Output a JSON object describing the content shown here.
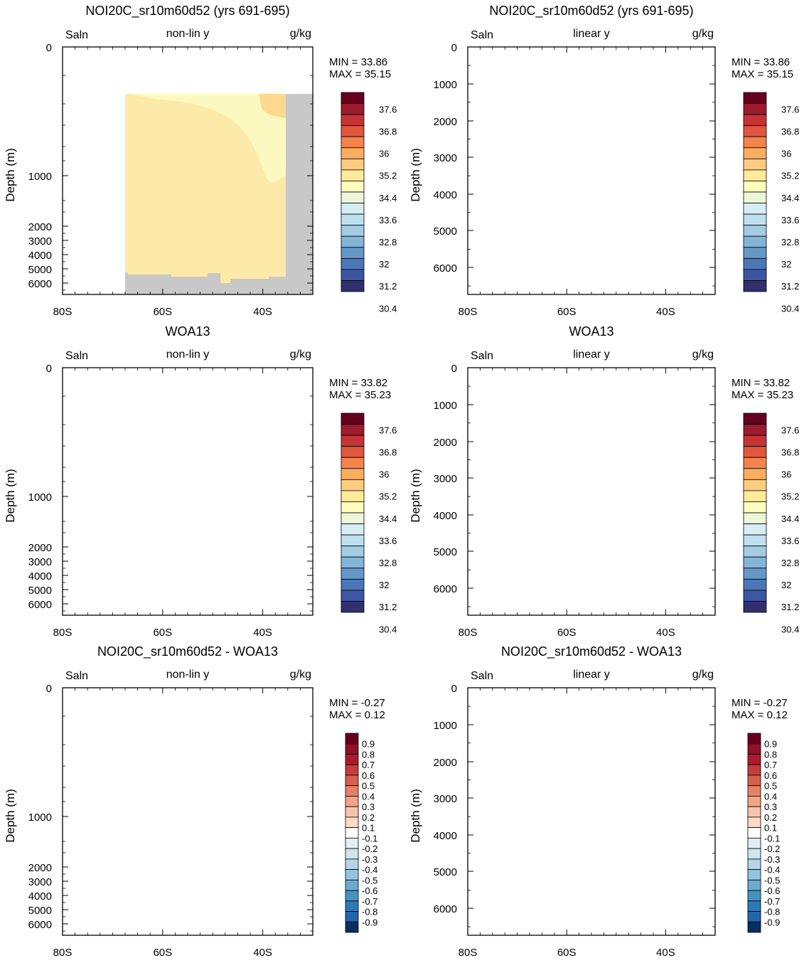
{
  "chart_data": [
    {
      "type": "contour",
      "title": "NOI20C_sr10m60d52 (yrs 691-695)",
      "left_label": "Saln",
      "center_label": "non-lin y",
      "right_label": "g/kg",
      "ylabel": "Depth (m)",
      "y_ticks": [
        "0",
        "1000",
        "2000",
        "3000",
        "4000",
        "5000",
        "6000"
      ],
      "x_ticks": [
        "80S",
        "60S",
        "40S"
      ],
      "min_label": "MIN =  33.86",
      "max_label": "MAX =  35.15",
      "colorbar": {
        "labels": [
          "37.6",
          "36.8",
          "36",
          "35.2",
          "34.4",
          "33.6",
          "32.8",
          "32",
          "31.2",
          "30.4"
        ],
        "colors": [
          "#67001f",
          "#9e1a2d",
          "#c73335",
          "#e0573e",
          "#f3844c",
          "#fbae60",
          "#fdcc81",
          "#feea99",
          "#fffcbe",
          "#edf6d7",
          "#d7edf4",
          "#bfe0ee",
          "#a3cce3",
          "#83b5d8",
          "#6597c9",
          "#4a77b6",
          "#3c56a2",
          "#322f6f"
        ]
      }
    },
    {
      "type": "contour",
      "title": "NOI20C_sr10m60d52 (yrs 691-695)",
      "left_label": "Saln",
      "center_label": "linear y",
      "right_label": "g/kg",
      "ylabel": "Depth (m)",
      "y_ticks": [
        "0",
        "1000",
        "2000",
        "3000",
        "4000",
        "5000",
        "6000"
      ],
      "x_ticks": [
        "80S",
        "60S",
        "40S"
      ],
      "min_label": "MIN =  33.86",
      "max_label": "MAX =  35.15",
      "colorbar": {
        "labels": [
          "37.6",
          "36.8",
          "36",
          "35.2",
          "34.4",
          "33.6",
          "32.8",
          "32",
          "31.2",
          "30.4"
        ],
        "colors": [
          "#67001f",
          "#9e1a2d",
          "#c73335",
          "#e0573e",
          "#f3844c",
          "#fbae60",
          "#fdcc81",
          "#feea99",
          "#fffcbe",
          "#edf6d7",
          "#d7edf4",
          "#bfe0ee",
          "#a3cce3",
          "#83b5d8",
          "#6597c9",
          "#4a77b6",
          "#3c56a2",
          "#322f6f"
        ]
      }
    },
    {
      "type": "contour",
      "title": "WOA13",
      "left_label": "Saln",
      "center_label": "non-lin y",
      "right_label": "g/kg",
      "ylabel": "Depth (m)",
      "y_ticks": [
        "0",
        "1000",
        "2000",
        "3000",
        "4000",
        "5000",
        "6000"
      ],
      "x_ticks": [
        "80S",
        "60S",
        "40S"
      ],
      "min_label": "MIN =  33.82",
      "max_label": "MAX =  35.23",
      "colorbar": {
        "labels": [
          "37.6",
          "36.8",
          "36",
          "35.2",
          "34.4",
          "33.6",
          "32.8",
          "32",
          "31.2",
          "30.4"
        ],
        "colors": [
          "#67001f",
          "#9e1a2d",
          "#c73335",
          "#e0573e",
          "#f3844c",
          "#fbae60",
          "#fdcc81",
          "#feea99",
          "#fffcbe",
          "#edf6d7",
          "#d7edf4",
          "#bfe0ee",
          "#a3cce3",
          "#83b5d8",
          "#6597c9",
          "#4a77b6",
          "#3c56a2",
          "#322f6f"
        ]
      }
    },
    {
      "type": "contour",
      "title": "WOA13",
      "left_label": "Saln",
      "center_label": "linear y",
      "right_label": "g/kg",
      "ylabel": "Depth (m)",
      "y_ticks": [
        "0",
        "1000",
        "2000",
        "3000",
        "4000",
        "5000",
        "6000"
      ],
      "x_ticks": [
        "80S",
        "60S",
        "40S"
      ],
      "min_label": "MIN =  33.82",
      "max_label": "MAX =  35.23",
      "colorbar": {
        "labels": [
          "37.6",
          "36.8",
          "36",
          "35.2",
          "34.4",
          "33.6",
          "32.8",
          "32",
          "31.2",
          "30.4"
        ],
        "colors": [
          "#67001f",
          "#9e1a2d",
          "#c73335",
          "#e0573e",
          "#f3844c",
          "#fbae60",
          "#fdcc81",
          "#feea99",
          "#fffcbe",
          "#edf6d7",
          "#d7edf4",
          "#bfe0ee",
          "#a3cce3",
          "#83b5d8",
          "#6597c9",
          "#4a77b6",
          "#3c56a2",
          "#322f6f"
        ]
      }
    },
    {
      "type": "contour",
      "title": "NOI20C_sr10m60d52 - WOA13",
      "left_label": "Saln",
      "center_label": "non-lin y",
      "right_label": "g/kg",
      "ylabel": "Depth (m)",
      "y_ticks": [
        "0",
        "1000",
        "2000",
        "3000",
        "4000",
        "5000",
        "6000"
      ],
      "x_ticks": [
        "80S",
        "60S",
        "40S"
      ],
      "min_label": "MIN =  -0.27",
      "max_label": "MAX =   0.12",
      "colorbar": {
        "labels": [
          "0.9",
          "0.8",
          "0.7",
          "0.6",
          "0.5",
          "0.4",
          "0.3",
          "0.2",
          "0.1",
          "-0.1",
          "-0.2",
          "-0.3",
          "-0.4",
          "-0.5",
          "-0.6",
          "-0.7",
          "-0.8",
          "-0.9"
        ],
        "colors": [
          "#67001f",
          "#930f26",
          "#b2182b",
          "#c43c3c",
          "#d6604d",
          "#e58267",
          "#f4a582",
          "#f8c4aa",
          "#fddbc7",
          "#ffffff",
          "#e1edf4",
          "#d1e5f0",
          "#b2d5e7",
          "#92c5de",
          "#6aabd1",
          "#4393c3",
          "#2f79b5",
          "#2166ac",
          "#053061"
        ]
      }
    },
    {
      "type": "contour",
      "title": "NOI20C_sr10m60d52 - WOA13",
      "left_label": "Saln",
      "center_label": "linear y",
      "right_label": "g/kg",
      "ylabel": "Depth (m)",
      "y_ticks": [
        "0",
        "1000",
        "2000",
        "3000",
        "4000",
        "5000",
        "6000"
      ],
      "x_ticks": [
        "80S",
        "60S",
        "40S"
      ],
      "min_label": "MIN =  -0.27",
      "max_label": "MAX =   0.12",
      "colorbar": {
        "labels": [
          "0.9",
          "0.8",
          "0.7",
          "0.6",
          "0.5",
          "0.4",
          "0.3",
          "0.2",
          "0.1",
          "-0.1",
          "-0.2",
          "-0.3",
          "-0.4",
          "-0.5",
          "-0.6",
          "-0.7",
          "-0.8",
          "-0.9"
        ],
        "colors": [
          "#67001f",
          "#930f26",
          "#b2182b",
          "#c43c3c",
          "#d6604d",
          "#e58267",
          "#f4a582",
          "#f8c4aa",
          "#fddbc7",
          "#ffffff",
          "#e1edf4",
          "#d1e5f0",
          "#b2d5e7",
          "#92c5de",
          "#6aabd1",
          "#4393c3",
          "#2f79b5",
          "#2166ac",
          "#053061"
        ]
      }
    }
  ]
}
